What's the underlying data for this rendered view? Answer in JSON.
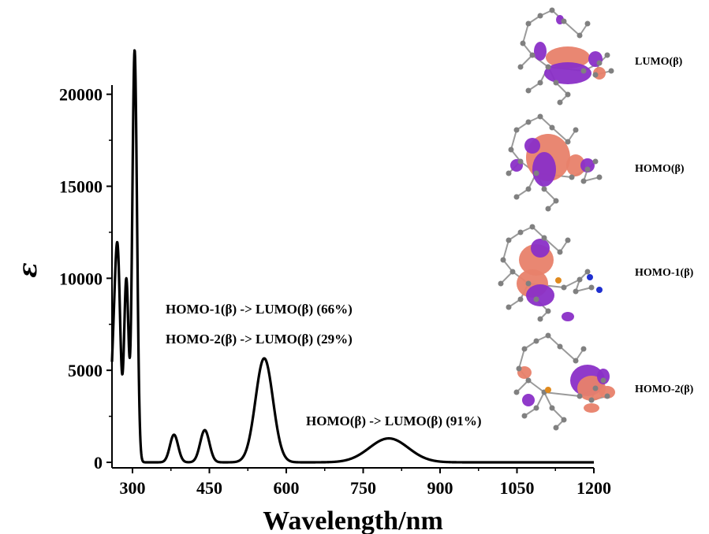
{
  "chart_data": {
    "type": "line",
    "title": "",
    "xlabel": "Wavelength/nm",
    "ylabel": "ε",
    "xlim": [
      260,
      1200
    ],
    "ylim": [
      -300,
      20500
    ],
    "xticks": [
      300,
      450,
      600,
      750,
      900,
      1050,
      1200
    ],
    "yticks": [
      0,
      5000,
      10000,
      15000,
      20000
    ],
    "grid": false,
    "series": [
      {
        "name": "",
        "color": "#000000",
        "peaks": [
          {
            "center": 265,
            "height": 6500,
            "width": 7
          },
          {
            "center": 272,
            "height": 7500,
            "width": 5
          },
          {
            "center": 288,
            "height": 9900,
            "width": 4.5
          },
          {
            "center": 302,
            "height": 6000,
            "width": 4
          },
          {
            "center": 305,
            "height": 17500,
            "width": 4.5
          },
          {
            "center": 381,
            "height": 1500,
            "width": 8
          },
          {
            "center": 441,
            "height": 1750,
            "width": 9
          },
          {
            "center": 557,
            "height": 5650,
            "width": 17
          },
          {
            "center": 800,
            "height": 1300,
            "width": 38
          }
        ]
      }
    ],
    "annotations": [
      {
        "text": "HOMO-1(β) -> LUMO(β) (66%)"
      },
      {
        "text": "HOMO-2(β) -> LUMO(β) (29%)"
      },
      {
        "text": "HOMO(β) -> LUMO(β) (91%)"
      }
    ],
    "orbitals": [
      {
        "label": "LUMO(β)"
      },
      {
        "label": "HOMO(β)"
      },
      {
        "label": "HOMO-1(β)"
      },
      {
        "label": "HOMO-2(β)"
      }
    ],
    "orbital_colors": {
      "positive": "#e8816a",
      "negative": "#8a2fc7",
      "atom": "#808080",
      "bond": "#9a9a9a",
      "phosphorus": "#e08a1e",
      "nitrogen": "#1f2fd0"
    }
  }
}
